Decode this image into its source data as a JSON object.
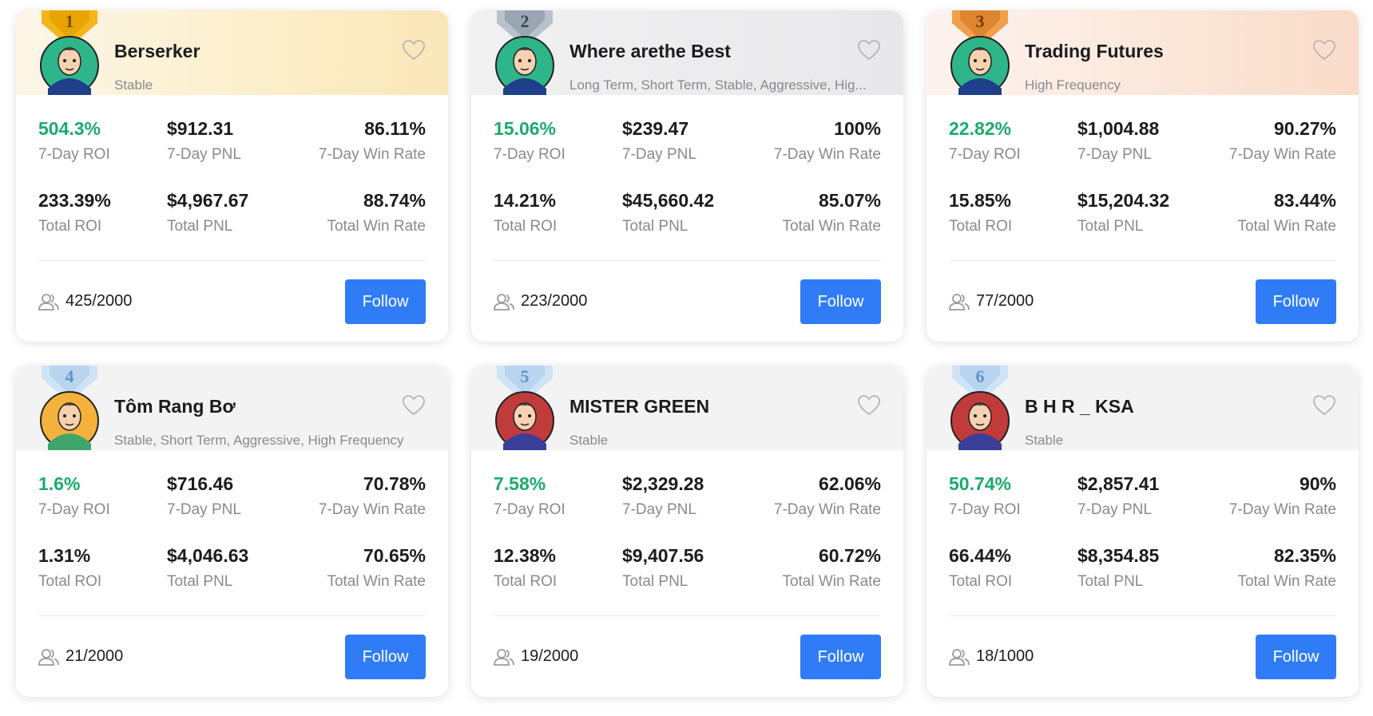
{
  "cards": [
    {
      "rank": "1",
      "name": "Berserker",
      "tags": "Stable",
      "stats": [
        {
          "value": "504.3%",
          "label": "7-Day ROI"
        },
        {
          "value": "$912.31",
          "label": "7-Day PNL"
        },
        {
          "value": "86.11%",
          "label": "7-Day Win Rate"
        },
        {
          "value": "233.39%",
          "label": "Total ROI"
        },
        {
          "value": "$4,967.67",
          "label": "Total PNL"
        },
        {
          "value": "88.74%",
          "label": "Total Win Rate"
        }
      ],
      "followers": "425/2000",
      "button": "Follow"
    },
    {
      "rank": "2",
      "name": "Where arethe Best",
      "tags": "Long Term, Short Term, Stable, Aggressive, Hig...",
      "stats": [
        {
          "value": "15.06%",
          "label": "7-Day ROI"
        },
        {
          "value": "$239.47",
          "label": "7-Day PNL"
        },
        {
          "value": "100%",
          "label": "7-Day Win Rate"
        },
        {
          "value": "14.21%",
          "label": "Total ROI"
        },
        {
          "value": "$45,660.42",
          "label": "Total PNL"
        },
        {
          "value": "85.07%",
          "label": "Total Win Rate"
        }
      ],
      "followers": "223/2000",
      "button": "Follow"
    },
    {
      "rank": "3",
      "name": "Trading Futures",
      "tags": "High Frequency",
      "stats": [
        {
          "value": "22.82%",
          "label": "7-Day ROI"
        },
        {
          "value": "$1,004.88",
          "label": "7-Day PNL"
        },
        {
          "value": "90.27%",
          "label": "7-Day Win Rate"
        },
        {
          "value": "15.85%",
          "label": "Total ROI"
        },
        {
          "value": "$15,204.32",
          "label": "Total PNL"
        },
        {
          "value": "83.44%",
          "label": "Total Win Rate"
        }
      ],
      "followers": "77/2000",
      "button": "Follow"
    },
    {
      "rank": "4",
      "name": "Tôm Rang Bơ",
      "tags": "Stable, Short Term, Aggressive, High Frequency",
      "stats": [
        {
          "value": "1.6%",
          "label": "7-Day ROI"
        },
        {
          "value": "$716.46",
          "label": "7-Day PNL"
        },
        {
          "value": "70.78%",
          "label": "7-Day Win Rate"
        },
        {
          "value": "1.31%",
          "label": "Total ROI"
        },
        {
          "value": "$4,046.63",
          "label": "Total PNL"
        },
        {
          "value": "70.65%",
          "label": "Total Win Rate"
        }
      ],
      "followers": "21/2000",
      "button": "Follow"
    },
    {
      "rank": "5",
      "name": "MISTER GREEN",
      "tags": "Stable",
      "stats": [
        {
          "value": "7.58%",
          "label": "7-Day ROI"
        },
        {
          "value": "$2,329.28",
          "label": "7-Day PNL"
        },
        {
          "value": "62.06%",
          "label": "7-Day Win Rate"
        },
        {
          "value": "12.38%",
          "label": "Total ROI"
        },
        {
          "value": "$9,407.56",
          "label": "Total PNL"
        },
        {
          "value": "60.72%",
          "label": "Total Win Rate"
        }
      ],
      "followers": "19/2000",
      "button": "Follow"
    },
    {
      "rank": "6",
      "name": "B H R _ KSA",
      "tags": "Stable",
      "stats": [
        {
          "value": "50.74%",
          "label": "7-Day ROI"
        },
        {
          "value": "$2,857.41",
          "label": "7-Day PNL"
        },
        {
          "value": "90%",
          "label": "7-Day Win Rate"
        },
        {
          "value": "66.44%",
          "label": "Total ROI"
        },
        {
          "value": "$8,354.85",
          "label": "Total PNL"
        },
        {
          "value": "82.35%",
          "label": "Total Win Rate"
        }
      ],
      "followers": "18/1000",
      "button": "Follow"
    }
  ]
}
